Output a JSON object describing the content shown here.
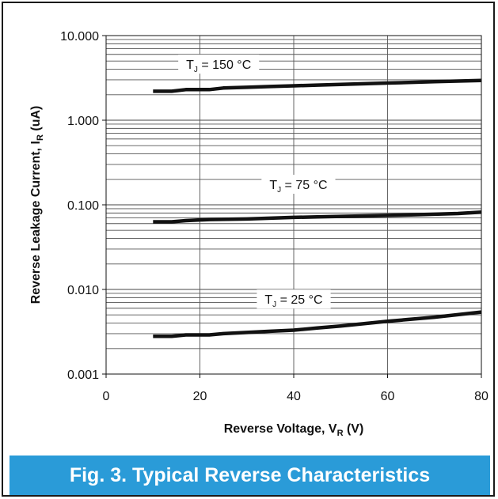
{
  "chart_data": {
    "type": "line",
    "title": "Fig. 3.  Typical Reverse Characteristics",
    "xlabel": "Reverse Voltage, V",
    "xlabel_sub": "R",
    "xlabel_unit": " (V)",
    "ylabel": "Reverse Leakage Current, I",
    "ylabel_sub": "R",
    "ylabel_unit": " (uA)",
    "xlim": [
      0,
      80
    ],
    "ylim": [
      0.001,
      10
    ],
    "yscale": "log",
    "grid": true,
    "x_ticks": [
      0,
      20,
      40,
      60,
      80
    ],
    "x_tick_labels": [
      "0",
      "20",
      "40",
      "60",
      "80"
    ],
    "y_ticks": [
      0.001,
      0.01,
      0.1,
      1,
      10
    ],
    "y_tick_labels": [
      "0.001",
      "0.010",
      "0.100",
      "1.000",
      "10.000"
    ],
    "series": [
      {
        "name": "TJ = 150 °C",
        "label_main": "T",
        "label_sub": "J",
        "label_rest": " = 150 °C",
        "label_at": [
          24,
          4.6
        ],
        "x": [
          10,
          14,
          17,
          22,
          25,
          30,
          35,
          40,
          45,
          50,
          60,
          70,
          80
        ],
        "y": [
          2.2,
          2.2,
          2.3,
          2.3,
          2.4,
          2.45,
          2.5,
          2.55,
          2.6,
          2.65,
          2.75,
          2.85,
          2.95
        ]
      },
      {
        "name": "TJ = 75 °C",
        "label_main": "T",
        "label_sub": "J",
        "label_rest": " = 75 °C",
        "label_at": [
          41,
          0.175
        ],
        "x": [
          10,
          14,
          17,
          22,
          30,
          40,
          45,
          55,
          65,
          75,
          80
        ],
        "y": [
          0.063,
          0.063,
          0.065,
          0.067,
          0.068,
          0.071,
          0.072,
          0.074,
          0.076,
          0.079,
          0.082
        ]
      },
      {
        "name": "TJ = 25 °C",
        "label_main": "T",
        "label_sub": "J",
        "label_rest": " = 25 °C",
        "label_at": [
          40,
          0.0077
        ],
        "x": [
          10,
          14,
          17,
          22,
          25,
          30,
          35,
          40,
          45,
          50,
          60,
          70,
          80
        ],
        "y": [
          0.0028,
          0.0028,
          0.0029,
          0.0029,
          0.003,
          0.0031,
          0.0032,
          0.0033,
          0.0035,
          0.0037,
          0.0042,
          0.0047,
          0.0054
        ]
      }
    ],
    "line_color": "#111111",
    "caption_color": "#2a9bd8"
  }
}
